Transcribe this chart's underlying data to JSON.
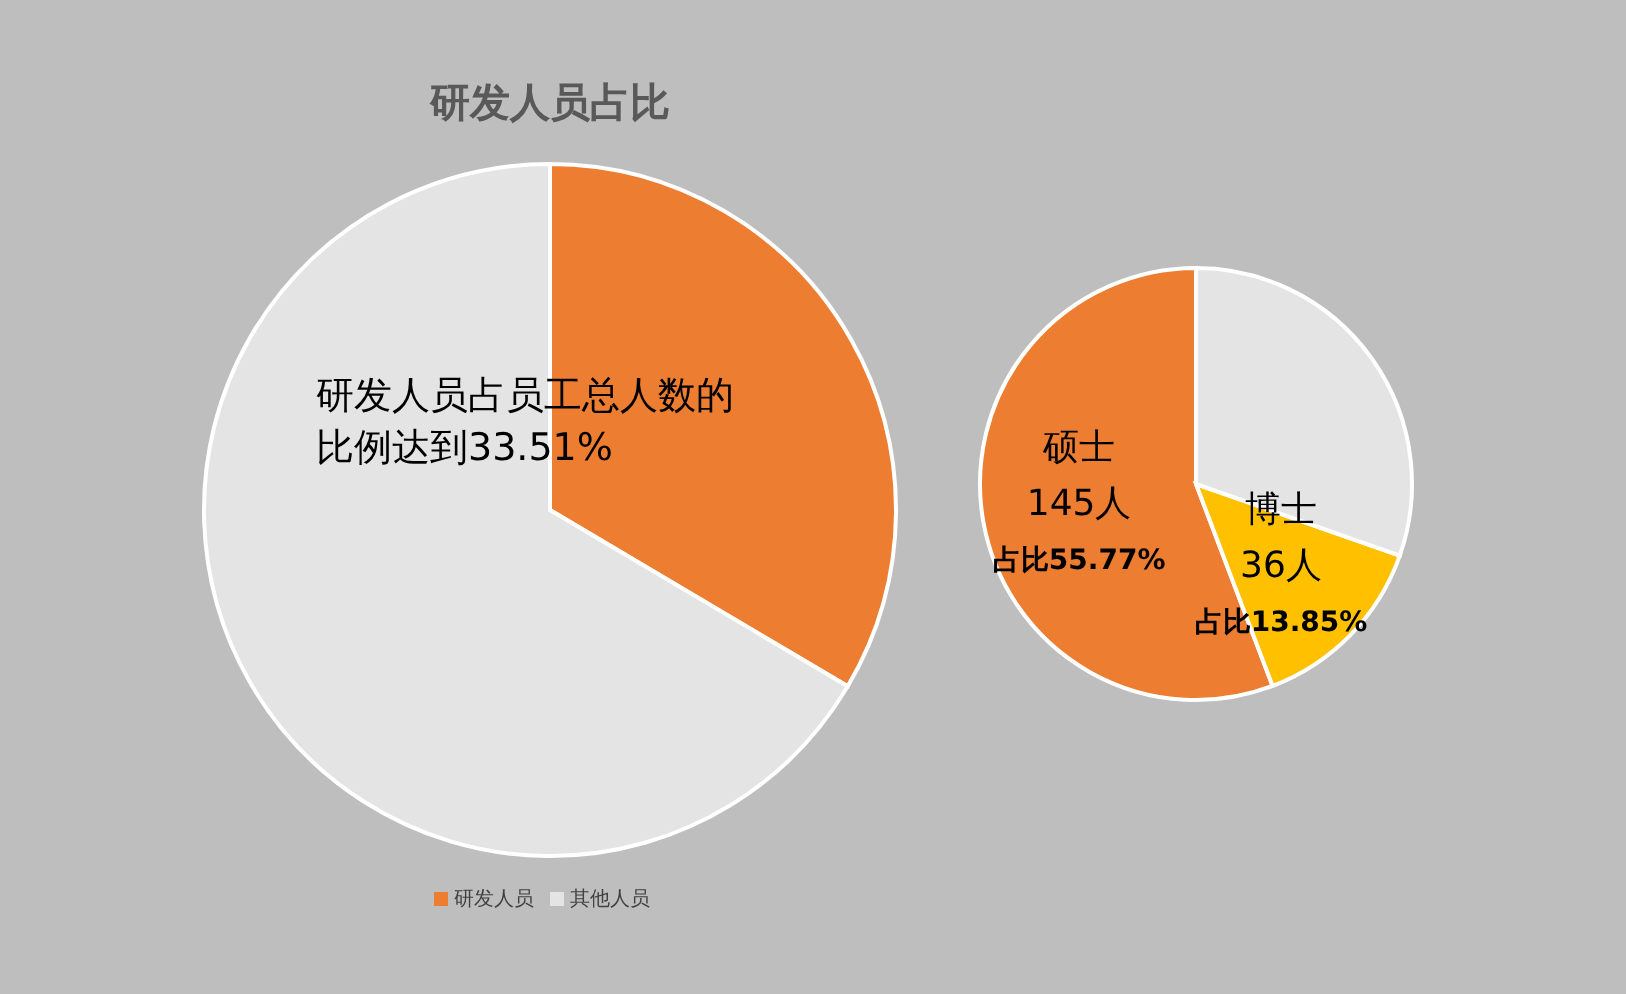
{
  "chart_data": [
    {
      "type": "pie",
      "title": "研发人员占比",
      "categories": [
        "研发人员",
        "其他人员"
      ],
      "values": [
        33.51,
        66.49
      ],
      "colors": [
        "#ed7d31",
        "#e4e4e4"
      ],
      "legend": "bottom",
      "annotations": [
        "研发人员占员工总人数的比例达到33.51%"
      ]
    },
    {
      "type": "pie",
      "categories": [
        "硕士",
        "博士",
        null
      ],
      "values": [
        55.77,
        13.85,
        30.38
      ],
      "colors": [
        "#ed7d31",
        "#ffc000",
        "#e4e4e4"
      ],
      "annotations": [
        "145人",
        "占比55.77%",
        "36人",
        "占比13.85%"
      ]
    }
  ]
}
